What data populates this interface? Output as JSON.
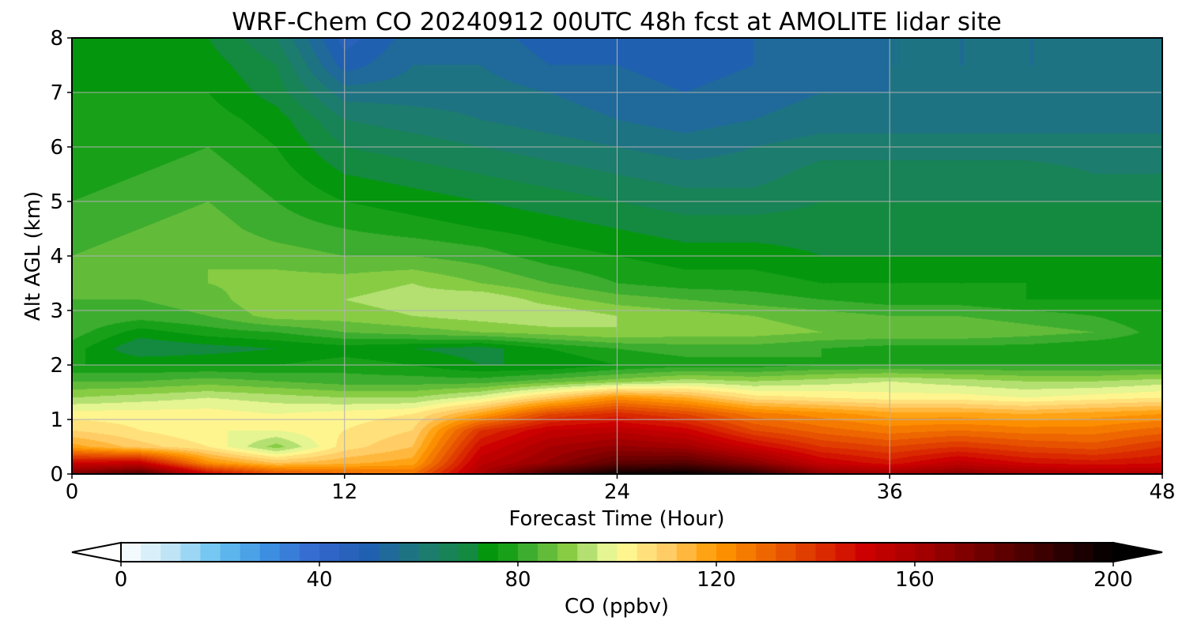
{
  "chart_data": {
    "type": "heatmap",
    "title": "WRF-Chem CO  20240912 00UTC 48h fcst at AMOLITE lidar site",
    "xlabel": "Forecast Time (Hour)",
    "ylabel": "Alt AGL (km)",
    "xlim": [
      0,
      48
    ],
    "ylim": [
      0,
      8
    ],
    "xticks": [
      0,
      12,
      24,
      36,
      48
    ],
    "yticks": [
      0,
      1,
      2,
      3,
      4,
      5,
      6,
      7,
      8
    ],
    "grid": true,
    "x": [
      0,
      3,
      6,
      9,
      12,
      15,
      18,
      21,
      24,
      27,
      30,
      33,
      36,
      39,
      42,
      45,
      48
    ],
    "y": [
      0,
      0.2,
      0.5,
      0.8,
      1.1,
      1.4,
      1.7,
      2.0,
      2.3,
      2.6,
      2.9,
      3.2,
      3.5,
      4.0,
      4.5,
      5.0,
      5.5,
      6.0,
      6.5,
      7.0,
      7.5,
      8.0
    ],
    "z": [
      [
        170,
        182,
        150,
        135,
        130,
        128,
        160,
        185,
        198,
        200,
        190,
        168,
        162,
        168,
        162,
        158,
        158
      ],
      [
        150,
        152,
        122,
        112,
        115,
        118,
        155,
        165,
        178,
        180,
        168,
        152,
        146,
        154,
        148,
        146,
        148
      ],
      [
        118,
        110,
        104,
        90,
        106,
        112,
        148,
        160,
        165,
        162,
        150,
        140,
        136,
        140,
        136,
        134,
        140
      ],
      [
        108,
        104,
        100,
        100,
        104,
        108,
        140,
        152,
        155,
        150,
        136,
        130,
        126,
        128,
        126,
        126,
        130
      ],
      [
        102,
        102,
        102,
        100,
        102,
        104,
        118,
        136,
        142,
        136,
        126,
        122,
        118,
        118,
        116,
        118,
        120
      ],
      [
        92,
        94,
        96,
        94,
        92,
        92,
        98,
        110,
        122,
        116,
        106,
        104,
        102,
        102,
        100,
        102,
        104
      ],
      [
        84,
        84,
        86,
        84,
        82,
        82,
        82,
        86,
        90,
        94,
        92,
        94,
        96,
        94,
        92,
        92,
        94
      ],
      [
        76,
        76,
        76,
        76,
        78,
        76,
        72,
        72,
        76,
        78,
        78,
        80,
        80,
        80,
        80,
        80,
        80
      ],
      [
        78,
        68,
        70,
        72,
        74,
        72,
        70,
        76,
        80,
        82,
        82,
        80,
        78,
        78,
        78,
        76,
        76
      ],
      [
        82,
        74,
        78,
        80,
        84,
        86,
        88,
        90,
        92,
        90,
        90,
        88,
        88,
        88,
        86,
        84,
        78
      ],
      [
        84,
        82,
        84,
        90,
        90,
        92,
        94,
        96,
        92,
        90,
        88,
        86,
        84,
        84,
        82,
        80,
        76
      ],
      [
        84,
        84,
        86,
        92,
        92,
        94,
        96,
        90,
        86,
        84,
        82,
        80,
        78,
        78,
        76,
        76,
        76
      ],
      [
        86,
        86,
        88,
        90,
        90,
        92,
        88,
        84,
        80,
        78,
        78,
        76,
        76,
        76,
        76,
        74,
        74
      ],
      [
        84,
        86,
        88,
        86,
        84,
        84,
        82,
        78,
        76,
        74,
        74,
        72,
        72,
        72,
        72,
        72,
        72
      ],
      [
        82,
        84,
        86,
        82,
        80,
        78,
        76,
        74,
        72,
        70,
        70,
        70,
        70,
        70,
        70,
        70,
        70
      ],
      [
        80,
        82,
        84,
        80,
        76,
        74,
        72,
        70,
        68,
        66,
        66,
        68,
        68,
        68,
        68,
        68,
        68
      ],
      [
        78,
        80,
        82,
        78,
        72,
        70,
        68,
        66,
        64,
        62,
        62,
        66,
        66,
        66,
        66,
        64,
        64
      ],
      [
        76,
        78,
        80,
        76,
        68,
        66,
        64,
        62,
        60,
        58,
        60,
        62,
        62,
        62,
        62,
        62,
        62
      ],
      [
        76,
        76,
        78,
        74,
        64,
        62,
        60,
        58,
        56,
        54,
        56,
        58,
        58,
        58,
        58,
        58,
        58
      ],
      [
        76,
        76,
        76,
        70,
        58,
        58,
        58,
        56,
        54,
        52,
        54,
        56,
        56,
        58,
        58,
        58,
        58
      ],
      [
        74,
        76,
        74,
        68,
        50,
        56,
        56,
        52,
        52,
        50,
        52,
        54,
        56,
        56,
        56,
        56,
        58
      ],
      [
        74,
        76,
        72,
        64,
        46,
        54,
        54,
        50,
        50,
        50,
        52,
        54,
        56,
        56,
        56,
        56,
        58
      ]
    ],
    "colorbar": {
      "label": "CO  (ppbv)",
      "min": 0,
      "max": 200,
      "ticks": [
        0,
        40,
        80,
        120,
        160,
        200
      ],
      "extend": "both",
      "levels": 50,
      "stops": [
        {
          "v": 0,
          "c": "#ffffff"
        },
        {
          "v": 10,
          "c": "#bfe4f6"
        },
        {
          "v": 20,
          "c": "#64c0f0"
        },
        {
          "v": 30,
          "c": "#3c8ee0"
        },
        {
          "v": 40,
          "c": "#3366cc"
        },
        {
          "v": 50,
          "c": "#2060b0"
        },
        {
          "v": 60,
          "c": "#1e7878"
        },
        {
          "v": 70,
          "c": "#138a40"
        },
        {
          "v": 75,
          "c": "#009900"
        },
        {
          "v": 80,
          "c": "#2aa52a"
        },
        {
          "v": 90,
          "c": "#88cc44"
        },
        {
          "v": 96,
          "c": "#c8ea88"
        },
        {
          "v": 100,
          "c": "#ffff99"
        },
        {
          "v": 110,
          "c": "#ffcc66"
        },
        {
          "v": 120,
          "c": "#ff9900"
        },
        {
          "v": 130,
          "c": "#ee6600"
        },
        {
          "v": 140,
          "c": "#dd3300"
        },
        {
          "v": 150,
          "c": "#cc0000"
        },
        {
          "v": 160,
          "c": "#aa0000"
        },
        {
          "v": 180,
          "c": "#550000"
        },
        {
          "v": 200,
          "c": "#000000"
        }
      ]
    }
  }
}
